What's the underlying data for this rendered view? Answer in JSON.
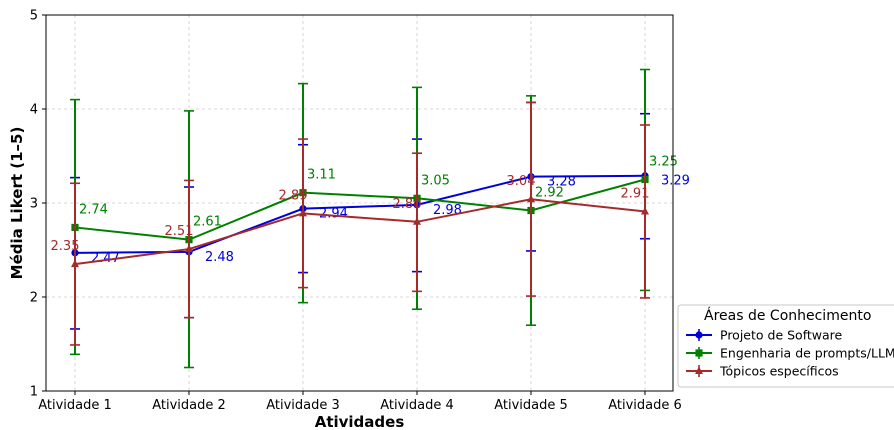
{
  "chart_data": {
    "type": "line",
    "title": "",
    "xlabel": "Atividades",
    "ylabel": "Média Likert (1–5)",
    "categories": [
      "Atividade 1",
      "Atividade 2",
      "Atividade 3",
      "Atividade 4",
      "Atividade 5",
      "Atividade 6"
    ],
    "ylim": [
      1,
      5
    ],
    "yticks": [
      "1",
      "2",
      "3",
      "4",
      "5"
    ],
    "grid": true,
    "legend": {
      "title": "Áreas de Conhecimento",
      "placement": "right-bottom"
    },
    "series": [
      {
        "name": "Projeto de Software",
        "color": "#0000dd",
        "marker": "circle",
        "values": [
          2.47,
          2.48,
          2.94,
          2.98,
          3.28,
          3.29
        ],
        "labels": [
          "2.47",
          "2.48",
          "2.94",
          "2.98",
          "3.28",
          "3.29"
        ],
        "err_low": [
          1.66,
          1.78,
          2.26,
          2.27,
          2.49,
          2.62
        ],
        "err_high": [
          3.27,
          3.17,
          3.62,
          3.68,
          4.07,
          3.95
        ]
      },
      {
        "name": "Engenharia de prompts/LLM",
        "color": "#008000",
        "marker": "square",
        "values": [
          2.74,
          2.61,
          3.11,
          3.05,
          2.92,
          3.25
        ],
        "labels": [
          "2.74",
          "2.61",
          "3.11",
          "3.05",
          "2.92",
          "3.25"
        ],
        "err_low": [
          1.39,
          1.25,
          1.94,
          1.87,
          1.7,
          2.07
        ],
        "err_high": [
          4.1,
          3.98,
          4.27,
          4.23,
          4.14,
          4.42
        ]
      },
      {
        "name": "Tópicos específicos",
        "color": "#a52a2a",
        "marker": "triangle",
        "values": [
          2.35,
          2.51,
          2.89,
          2.8,
          3.04,
          2.91
        ],
        "labels": [
          "2.35",
          "2.51",
          "2.89",
          "2.80",
          "3.04",
          "2.91"
        ],
        "err_low": [
          1.49,
          1.78,
          2.1,
          2.06,
          2.01,
          1.99
        ],
        "err_high": [
          3.21,
          3.24,
          3.68,
          3.53,
          4.07,
          3.83
        ]
      }
    ]
  }
}
